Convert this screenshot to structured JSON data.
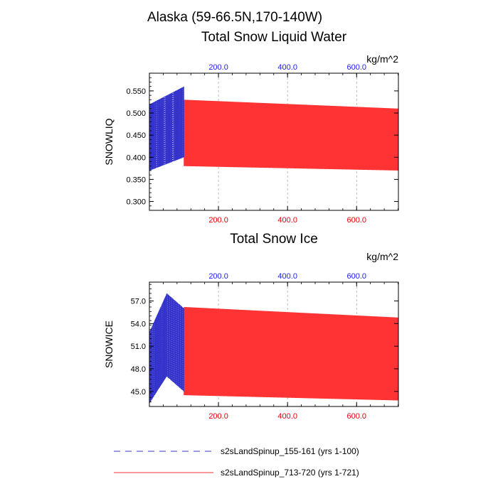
{
  "page": {
    "title": "Alaska (59-66.5N,170-140W)"
  },
  "legend": {
    "placement": "bottom-left",
    "entries": [
      {
        "label": "s2sLandSpinup_155-161 (yrs 1-100)",
        "color": "#3333cc",
        "style": "dashed"
      },
      {
        "label": "s2sLandSpinup_713-720 (yrs 1-721)",
        "color": "#ff3333",
        "style": "solid"
      }
    ]
  },
  "colors": {
    "bottom_ticks": "#e8000b",
    "top_ticks": "#1a1aff",
    "series_a": "#3333cc",
    "series_b": "#ff3333",
    "grid": "#aaaaaa"
  },
  "chart_data": [
    {
      "type": "line",
      "title": "Total Snow Liquid Water",
      "units": "kg/m^2",
      "ylabel": "SNOWLIQ",
      "xlabel": "",
      "xlim": [
        0,
        721
      ],
      "ylim": [
        0.28,
        0.59
      ],
      "x_ticks": [
        200,
        400,
        600
      ],
      "x_tick_labels": [
        "200.0",
        "400.0",
        "600.0"
      ],
      "top_x_tick_labels": [
        "200.0",
        "400.0",
        "600.0"
      ],
      "y_ticks": [
        0.3,
        0.35,
        0.4,
        0.45,
        0.5,
        0.55
      ],
      "y_tick_labels": [
        "0.300",
        "0.350",
        "0.400",
        "0.450",
        "0.500",
        "0.550"
      ],
      "vertical_grid": true,
      "series": [
        {
          "name": "s2sLandSpinup_155-161 (yrs 1-100)",
          "x_range": [
            1,
            100
          ],
          "cycle": {
            "peak_years": [
              1,
              100
            ],
            "peak": [
              0.52,
              0.56
            ],
            "low": [
              0.37,
              0.4
            ]
          },
          "mid": {
            "x": [
              1,
              40,
              100
            ],
            "y": [
              0.42,
              0.46,
              0.44
            ]
          }
        },
        {
          "name": "s2sLandSpinup_713-720 (yrs 1-721)",
          "x_range": [
            100,
            721
          ],
          "cycle": {
            "peak_years": [
              100,
              721
            ],
            "peak": [
              0.53,
              0.51
            ],
            "low": [
              0.38,
              0.37
            ]
          },
          "mid": {
            "x": [
              100,
              721
            ],
            "y": [
              0.445,
              0.415
            ]
          }
        }
      ]
    },
    {
      "type": "line",
      "title": "Total Snow Ice",
      "units": "kg/m^2",
      "ylabel": "SNOWICE",
      "xlabel": "",
      "xlim": [
        0,
        721
      ],
      "ylim": [
        43.0,
        59.5
      ],
      "x_ticks": [
        200,
        400,
        600
      ],
      "x_tick_labels": [
        "200.0",
        "400.0",
        "600.0"
      ],
      "top_x_tick_labels": [
        "200.0",
        "400.0",
        "600.0"
      ],
      "y_ticks": [
        45.0,
        48.0,
        51.0,
        54.0,
        57.0
      ],
      "y_tick_labels": [
        "45.0",
        "48.0",
        "51.0",
        "54.0",
        "57.0"
      ],
      "vertical_grid": true,
      "series": [
        {
          "name": "s2sLandSpinup_155-161 (yrs 1-100)",
          "x_range": [
            1,
            100
          ],
          "cycle": {
            "peak_years": [
              1,
              50,
              100
            ],
            "peak": [
              53.0,
              58.0,
              56.0
            ],
            "low": [
              43.5,
              47.0,
              45.0
            ]
          },
          "mid": {
            "x": [
              1,
              50,
              100
            ],
            "y": [
              47.0,
              50.5,
              50.0
            ]
          }
        },
        {
          "name": "s2sLandSpinup_713-720 (yrs 1-721)",
          "x_range": [
            100,
            721
          ],
          "cycle": {
            "peak_years": [
              100,
              721
            ],
            "peak": [
              56.2,
              54.8
            ],
            "low": [
              44.5,
              43.8
            ]
          },
          "mid": {
            "x": [
              100,
              721
            ],
            "y": [
              52.8,
              52.8
            ]
          },
          "mid_low": {
            "x": [
              100,
              721
            ],
            "y": [
              48.3,
              47.9
            ]
          }
        }
      ]
    }
  ]
}
